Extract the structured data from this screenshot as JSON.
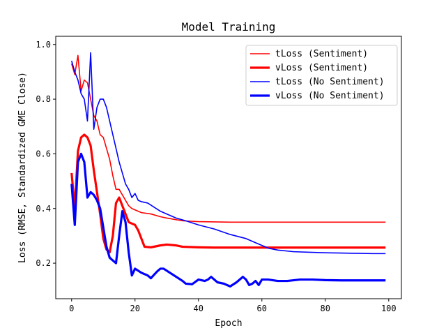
{
  "chart_data": {
    "type": "line",
    "title": "Model Training",
    "xlabel": "Epoch",
    "ylabel": "Loss (RMSE, Standardized GME Close)",
    "xlim": [
      -5,
      104
    ],
    "ylim": [
      0.07,
      1.03
    ],
    "xticks": [
      0,
      20,
      40,
      60,
      80,
      100
    ],
    "yticks": [
      0.2,
      0.4,
      0.6,
      0.8,
      1.0
    ],
    "grid": false,
    "legend_position": "upper-right",
    "series": [
      {
        "name": "tLoss (Sentiment)",
        "color": "#ff0000",
        "points": [
          [
            0,
            0.93
          ],
          [
            1,
            0.89
          ],
          [
            2,
            0.96
          ],
          [
            3,
            0.83
          ],
          [
            4,
            0.87
          ],
          [
            5,
            0.86
          ],
          [
            6,
            0.8
          ],
          [
            7,
            0.74
          ],
          [
            8,
            0.72
          ],
          [
            9,
            0.67
          ],
          [
            10,
            0.66
          ],
          [
            11,
            0.62
          ],
          [
            12,
            0.58
          ],
          [
            13,
            0.52
          ],
          [
            14,
            0.47
          ],
          [
            15,
            0.47
          ],
          [
            16,
            0.45
          ],
          [
            17,
            0.43
          ],
          [
            18,
            0.41
          ],
          [
            19,
            0.4
          ],
          [
            20,
            0.395
          ],
          [
            22,
            0.385
          ],
          [
            25,
            0.38
          ],
          [
            28,
            0.37
          ],
          [
            30,
            0.365
          ],
          [
            35,
            0.355
          ],
          [
            40,
            0.352
          ],
          [
            45,
            0.351
          ],
          [
            50,
            0.35
          ],
          [
            55,
            0.35
          ],
          [
            60,
            0.35
          ],
          [
            65,
            0.35
          ],
          [
            70,
            0.35
          ],
          [
            75,
            0.35
          ],
          [
            80,
            0.35
          ],
          [
            85,
            0.35
          ],
          [
            90,
            0.35
          ],
          [
            95,
            0.35
          ],
          [
            99,
            0.35
          ]
        ]
      },
      {
        "name": "vLoss (Sentiment)",
        "color": "#ff0000",
        "points": [
          [
            0,
            0.53
          ],
          [
            1,
            0.4
          ],
          [
            2,
            0.61
          ],
          [
            3,
            0.66
          ],
          [
            4,
            0.67
          ],
          [
            5,
            0.66
          ],
          [
            6,
            0.63
          ],
          [
            7,
            0.54
          ],
          [
            8,
            0.46
          ],
          [
            9,
            0.38
          ],
          [
            10,
            0.29
          ],
          [
            11,
            0.25
          ],
          [
            12,
            0.24
          ],
          [
            13,
            0.3
          ],
          [
            14,
            0.42
          ],
          [
            15,
            0.44
          ],
          [
            16,
            0.41
          ],
          [
            17,
            0.38
          ],
          [
            18,
            0.35
          ],
          [
            19,
            0.345
          ],
          [
            20,
            0.34
          ],
          [
            21,
            0.32
          ],
          [
            22,
            0.29
          ],
          [
            23,
            0.26
          ],
          [
            25,
            0.258
          ],
          [
            28,
            0.265
          ],
          [
            30,
            0.268
          ],
          [
            33,
            0.265
          ],
          [
            35,
            0.26
          ],
          [
            40,
            0.258
          ],
          [
            45,
            0.257
          ],
          [
            50,
            0.257
          ],
          [
            60,
            0.257
          ],
          [
            70,
            0.257
          ],
          [
            80,
            0.257
          ],
          [
            90,
            0.257
          ],
          [
            99,
            0.257
          ]
        ]
      },
      {
        "name": "tLoss (No Sentiment)",
        "color": "#0000ff",
        "points": [
          [
            0,
            0.94
          ],
          [
            1,
            0.9
          ],
          [
            2,
            0.87
          ],
          [
            3,
            0.82
          ],
          [
            4,
            0.8
          ],
          [
            5,
            0.72
          ],
          [
            6,
            0.97
          ],
          [
            7,
            0.69
          ],
          [
            8,
            0.77
          ],
          [
            9,
            0.8
          ],
          [
            10,
            0.8
          ],
          [
            11,
            0.77
          ],
          [
            12,
            0.72
          ],
          [
            13,
            0.67
          ],
          [
            14,
            0.62
          ],
          [
            15,
            0.57
          ],
          [
            16,
            0.53
          ],
          [
            17,
            0.49
          ],
          [
            18,
            0.47
          ],
          [
            19,
            0.44
          ],
          [
            20,
            0.455
          ],
          [
            21,
            0.43
          ],
          [
            22,
            0.425
          ],
          [
            24,
            0.42
          ],
          [
            26,
            0.405
          ],
          [
            28,
            0.39
          ],
          [
            30,
            0.38
          ],
          [
            33,
            0.365
          ],
          [
            36,
            0.355
          ],
          [
            40,
            0.34
          ],
          [
            45,
            0.325
          ],
          [
            50,
            0.305
          ],
          [
            55,
            0.29
          ],
          [
            58,
            0.275
          ],
          [
            60,
            0.265
          ],
          [
            62,
            0.255
          ],
          [
            65,
            0.248
          ],
          [
            70,
            0.242
          ],
          [
            75,
            0.24
          ],
          [
            80,
            0.238
          ],
          [
            85,
            0.237
          ],
          [
            90,
            0.236
          ],
          [
            95,
            0.235
          ],
          [
            99,
            0.235
          ]
        ]
      },
      {
        "name": "vLoss (No Sentiment)",
        "color": "#0000ff",
        "points": [
          [
            0,
            0.49
          ],
          [
            1,
            0.34
          ],
          [
            2,
            0.57
          ],
          [
            3,
            0.6
          ],
          [
            4,
            0.57
          ],
          [
            5,
            0.44
          ],
          [
            6,
            0.46
          ],
          [
            7,
            0.45
          ],
          [
            8,
            0.43
          ],
          [
            9,
            0.4
          ],
          [
            10,
            0.33
          ],
          [
            11,
            0.26
          ],
          [
            12,
            0.22
          ],
          [
            13,
            0.21
          ],
          [
            14,
            0.2
          ],
          [
            15,
            0.3
          ],
          [
            16,
            0.39
          ],
          [
            17,
            0.35
          ],
          [
            18,
            0.24
          ],
          [
            19,
            0.155
          ],
          [
            20,
            0.18
          ],
          [
            22,
            0.165
          ],
          [
            24,
            0.155
          ],
          [
            25,
            0.145
          ],
          [
            27,
            0.17
          ],
          [
            28,
            0.18
          ],
          [
            29,
            0.18
          ],
          [
            31,
            0.165
          ],
          [
            33,
            0.15
          ],
          [
            35,
            0.135
          ],
          [
            36,
            0.125
          ],
          [
            38,
            0.123
          ],
          [
            40,
            0.14
          ],
          [
            42,
            0.135
          ],
          [
            43,
            0.14
          ],
          [
            44,
            0.15
          ],
          [
            46,
            0.13
          ],
          [
            48,
            0.125
          ],
          [
            50,
            0.115
          ],
          [
            52,
            0.13
          ],
          [
            54,
            0.15
          ],
          [
            55,
            0.14
          ],
          [
            56,
            0.12
          ],
          [
            57,
            0.125
          ],
          [
            58,
            0.135
          ],
          [
            59,
            0.12
          ],
          [
            60,
            0.14
          ],
          [
            62,
            0.14
          ],
          [
            65,
            0.135
          ],
          [
            68,
            0.135
          ],
          [
            72,
            0.14
          ],
          [
            76,
            0.14
          ],
          [
            80,
            0.138
          ],
          [
            85,
            0.137
          ],
          [
            90,
            0.137
          ],
          [
            95,
            0.137
          ],
          [
            99,
            0.137
          ]
        ]
      }
    ]
  }
}
